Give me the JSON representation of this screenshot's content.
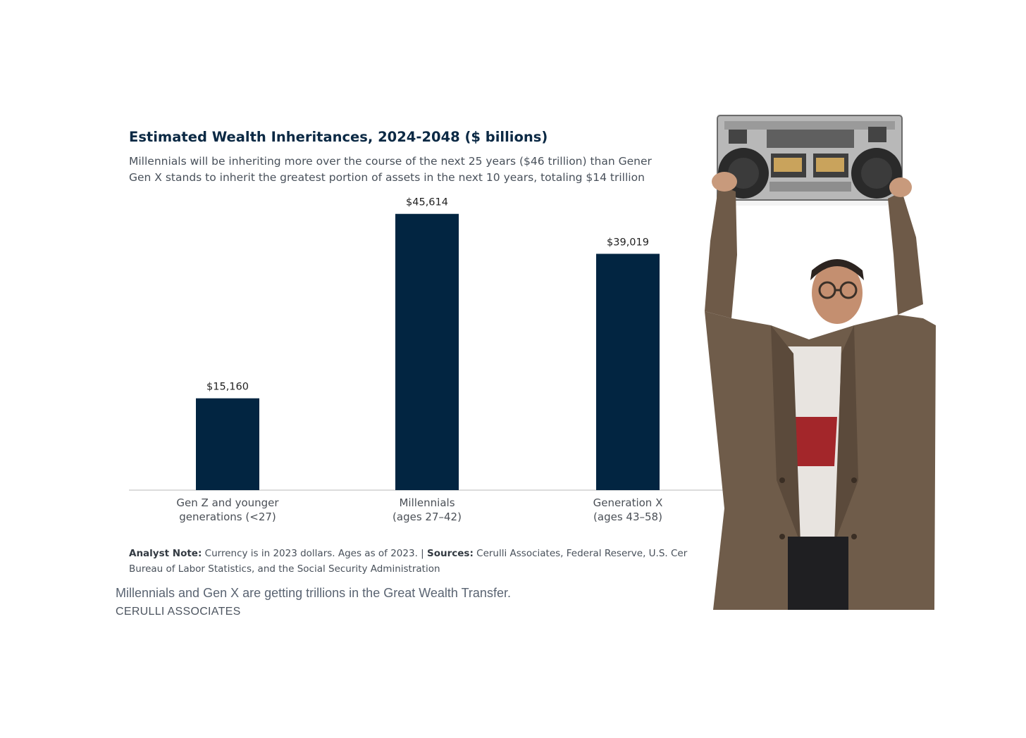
{
  "chart_data": {
    "type": "bar",
    "title": "Estimated Wealth Inheritances, 2024-2048 ($ billions)",
    "subtitle_lines": [
      "Millennials will be inheriting more over the course of the next 25 years ($46 trillion) than Gener",
      "Gen X stands to inherit the greatest portion of assets in the next 10 years, totaling $14 trillion"
    ],
    "categories": [
      "Gen Z and younger\ngenerations (<27)",
      "Millennials\n(ages 27–42)",
      "Generation X\n(ages 43–58)"
    ],
    "values": [
      15160,
      45614,
      39019
    ],
    "value_labels": [
      "$15,160",
      "$45,614",
      "$39,019"
    ],
    "ylim": [
      0,
      50000
    ],
    "bar_color": "#022541",
    "grid": false,
    "legend": "none"
  },
  "analyst_note": {
    "label": "Analyst Note:",
    "text": " Currency is in 2023 dollars. Ages as of 2023.  |  ",
    "sources_label": "Sources:",
    "sources_text": " Cerulli Associates, Federal Reserve, U.S. Cer",
    "line2": "Bureau of Labor Statistics, and the Social Security Administration"
  },
  "caption": "Millennials and Gen X are getting trillions in the Great Wealth Transfer.",
  "credit": "CERULLI ASSOCIATES"
}
